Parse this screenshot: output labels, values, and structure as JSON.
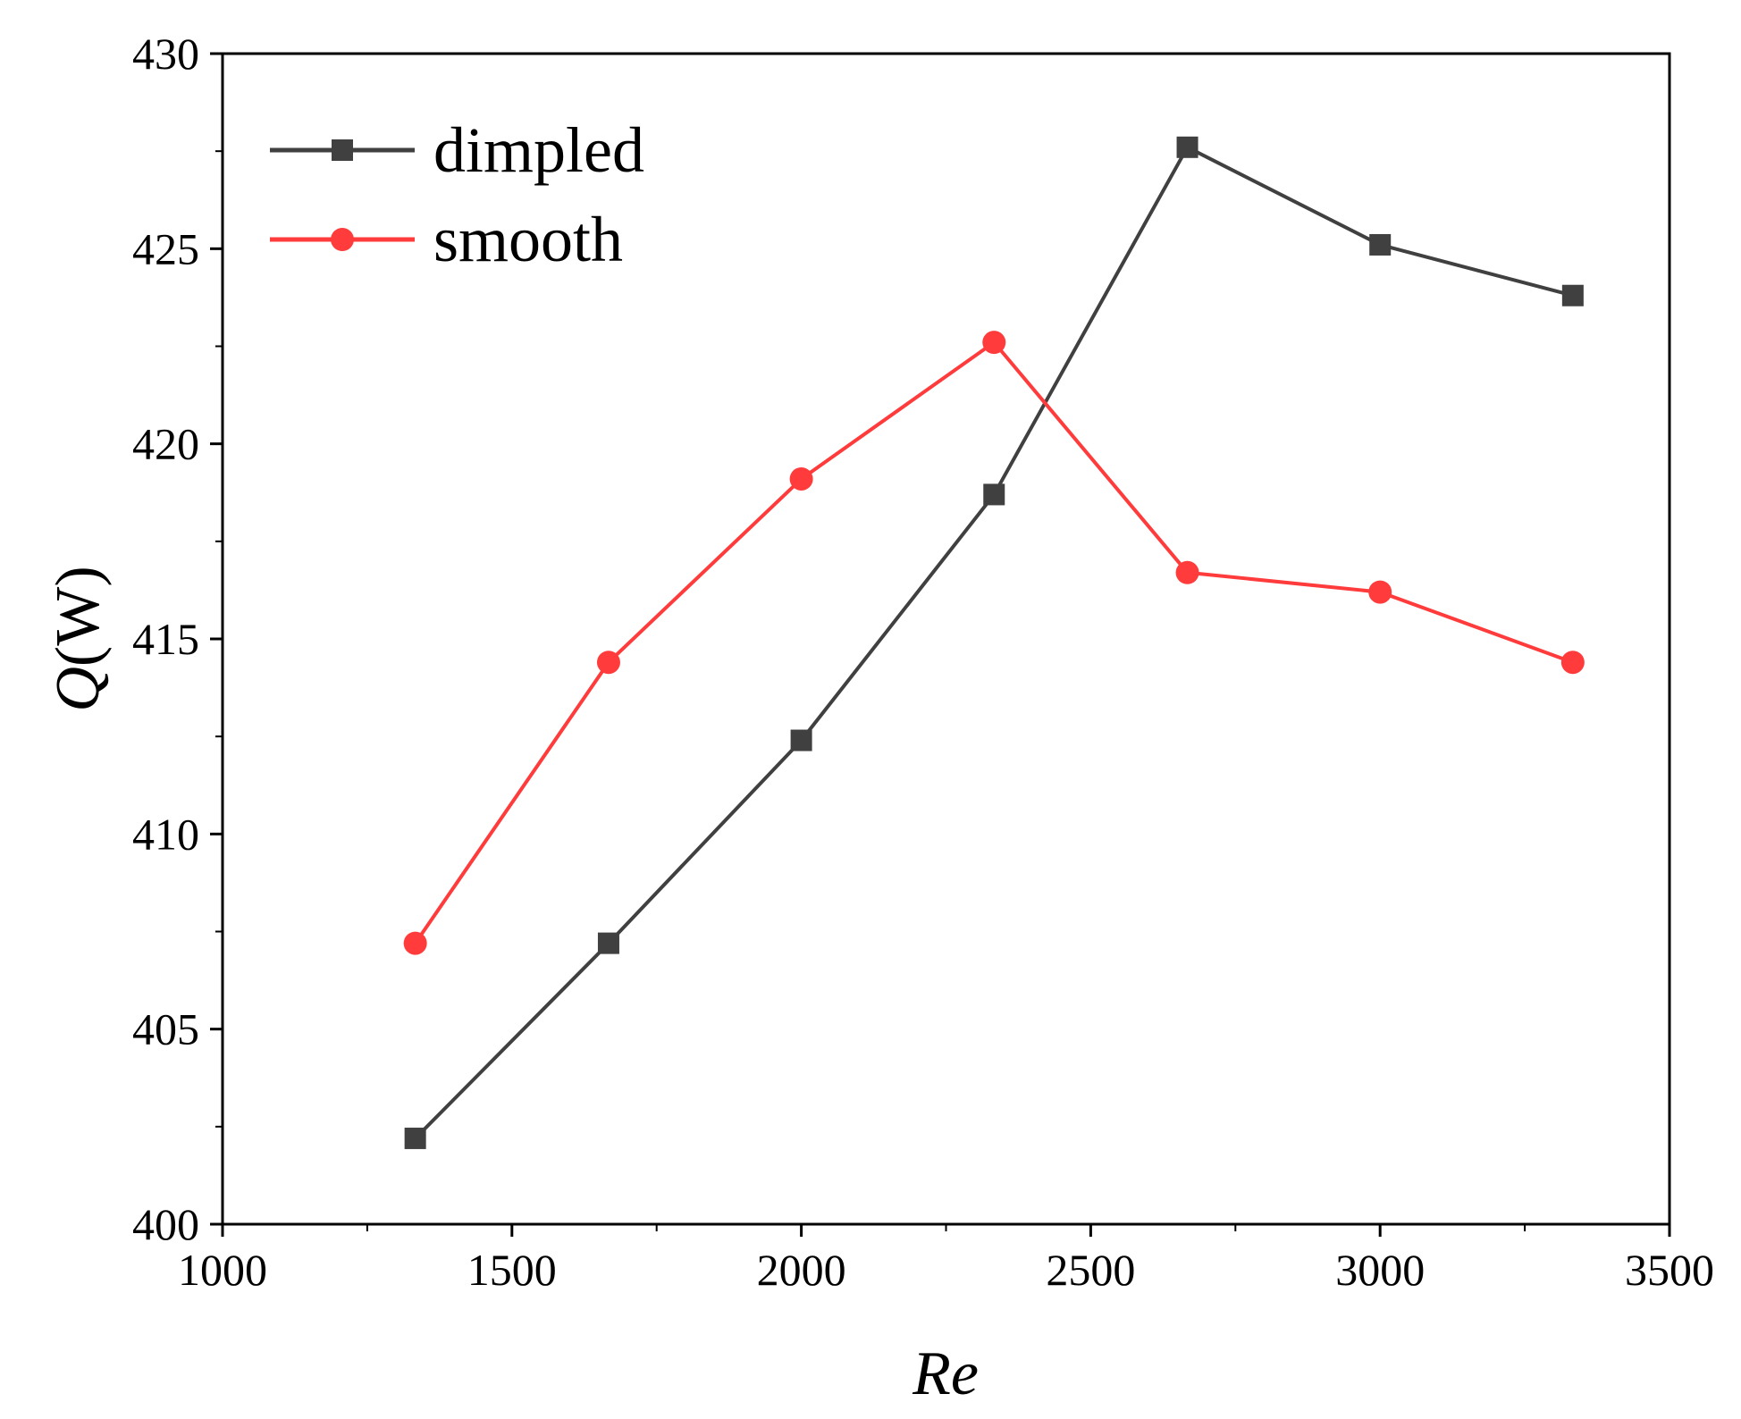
{
  "chart_data": {
    "type": "line",
    "title": "",
    "xlabel": "Re",
    "ylabel_symbol": "Q",
    "ylabel_unit": "(W)",
    "xlim": [
      1000,
      3500
    ],
    "ylim": [
      400,
      430
    ],
    "x_ticks": [
      1000,
      1500,
      2000,
      2500,
      3000,
      3500
    ],
    "y_ticks": [
      400,
      405,
      410,
      415,
      420,
      425,
      430
    ],
    "x_minor_ticks": [
      1250,
      1750,
      2250,
      2750,
      3250
    ],
    "y_minor_ticks": [
      402.5,
      407.5,
      412.5,
      417.5,
      422.5,
      427.5
    ],
    "legend_position": "top-left",
    "grid": false,
    "x": [
      1333,
      1667,
      2000,
      2333,
      2667,
      3000,
      3333
    ],
    "series": [
      {
        "name": "dimpled",
        "color": "#404040",
        "marker": "square",
        "values": [
          402.2,
          407.2,
          412.4,
          418.7,
          427.6,
          425.1,
          423.8
        ]
      },
      {
        "name": "smooth",
        "color": "#ff3b3b",
        "marker": "circle",
        "values": [
          407.2,
          414.4,
          419.1,
          422.6,
          416.7,
          416.2,
          414.4
        ]
      }
    ]
  }
}
